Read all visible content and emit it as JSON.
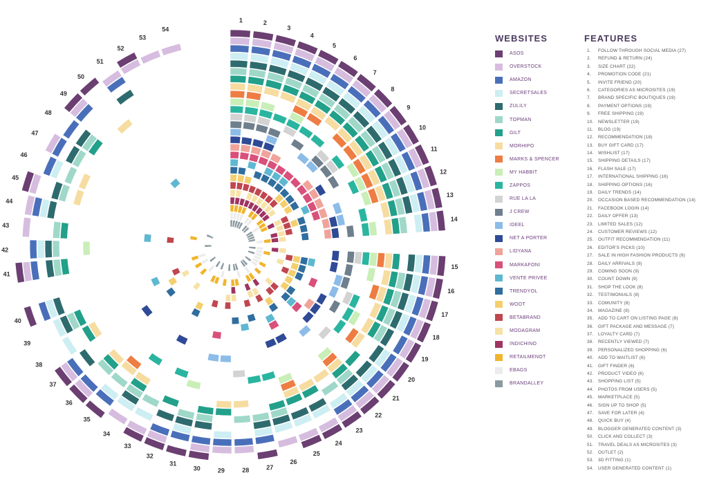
{
  "legend": {
    "websites_title": "WEBSITES",
    "features_title": "FEATURES"
  },
  "websites": [
    {
      "name": "ASOS",
      "color": "#6b3f72"
    },
    {
      "name": "OVERSTOCK",
      "color": "#d6bddf"
    },
    {
      "name": "AMAZON",
      "color": "#4a6fba"
    },
    {
      "name": "SECRETSALES",
      "color": "#cdeef2"
    },
    {
      "name": "ZULILY",
      "color": "#2e6b6e"
    },
    {
      "name": "TOPMAN",
      "color": "#9fd8c9"
    },
    {
      "name": "GILT",
      "color": "#22a08a"
    },
    {
      "name": "MORHIPO",
      "color": "#f6dca0"
    },
    {
      "name": "MARKS & SPENCER",
      "color": "#ee7d43"
    },
    {
      "name": "MY HABBIT",
      "color": "#c9eeb7"
    },
    {
      "name": "ZAPPOS",
      "color": "#2ab5a0"
    },
    {
      "name": "RUE LA LA",
      "color": "#d3d3d3"
    },
    {
      "name": "J CREW",
      "color": "#6f7f8d"
    },
    {
      "name": "IDEEL",
      "color": "#8cbce8"
    },
    {
      "name": "NET A PORTER",
      "color": "#2f4a96"
    },
    {
      "name": "LIDYANA",
      "color": "#f0a39a"
    },
    {
      "name": "MARKAFONI",
      "color": "#d9507a"
    },
    {
      "name": "VENTE PRIVEE",
      "color": "#5fb8d1"
    },
    {
      "name": "TRENDYOL",
      "color": "#2f6e9e"
    },
    {
      "name": "WOOT",
      "color": "#f3cf6e"
    },
    {
      "name": "BETABRAND",
      "color": "#c0464f"
    },
    {
      "name": "MODAGRAM",
      "color": "#f7e2a6"
    },
    {
      "name": "INDICHINO",
      "color": "#9e3462"
    },
    {
      "name": "RETAILMENOT",
      "color": "#f0b52c"
    },
    {
      "name": "EBAGS",
      "color": "#ececec"
    },
    {
      "name": "BRANDALLEY",
      "color": "#8a9aa0"
    }
  ],
  "features": [
    {
      "no": "1.",
      "label": "FOLLOW THROUGH SOCIAL MEDIA (27)"
    },
    {
      "no": "2.",
      "label": "REFUND & RETURN (24)"
    },
    {
      "no": "3.",
      "label": "SIZE CHART (22)"
    },
    {
      "no": "4.",
      "label": "PROMOTION CODE (21)"
    },
    {
      "no": "5.",
      "label": "INVITE FRIEND (20)"
    },
    {
      "no": "6.",
      "label": "CATEGORIES AS MICROSITES (19)"
    },
    {
      "no": "7.",
      "label": "BRAND SPECIFIC BOUTIQUES (19)"
    },
    {
      "no": "8.",
      "label": "PAYMENT OPTIONS (19)"
    },
    {
      "no": "9.",
      "label": "FREE SHIPPING (19)"
    },
    {
      "no": "10.",
      "label": "NEWSLETTER (19)"
    },
    {
      "no": "11.",
      "label": "BLOG (19)"
    },
    {
      "no": "12.",
      "label": "RECOMMENDATION (18)"
    },
    {
      "no": "13.",
      "label": "BUY GIFT CARD (17)"
    },
    {
      "no": "14.",
      "label": "WISHLIST (17)"
    },
    {
      "no": "15.",
      "label": "SHIPPING DETAILS (17)"
    },
    {
      "no": "16.",
      "label": "FLASH SALE (17)"
    },
    {
      "no": "17.",
      "label": "INTERNATIONAL SHIPPING (16)"
    },
    {
      "no": "18.",
      "label": "SHIPPING OPTIONS (16)"
    },
    {
      "no": "19.",
      "label": "DAILY TRENDS (14)"
    },
    {
      "no": "20.",
      "label": "OCCASION BASED RECOMMENDATION (14)"
    },
    {
      "no": "21.",
      "label": "FACEBOOK LOGIN (14)"
    },
    {
      "no": "22.",
      "label": "DAILY OFFER (13)"
    },
    {
      "no": "23.",
      "label": "LIMITED SALES (12)"
    },
    {
      "no": "24.",
      "label": "CUSTOMER REVIEWS (12)"
    },
    {
      "no": "25.",
      "label": "OUTFIT RECOMMENDATION (11)"
    },
    {
      "no": "26.",
      "label": "EDITOR'S PICKS (10)"
    },
    {
      "no": "27.",
      "label": "SALE IN HIGH FASHION PRODUCTS  (9)"
    },
    {
      "no": "28.",
      "label": "DAILY ARRIVALS (9)"
    },
    {
      "no": "29.",
      "label": "COMING SOON (9)"
    },
    {
      "no": "30.",
      "label": "COUNT DOWN (9)"
    },
    {
      "no": "31.",
      "label": "SHOP THE LOOK (8)"
    },
    {
      "no": "32.",
      "label": "TESTIMONIALS (8)"
    },
    {
      "no": "33.",
      "label": "COMUNITY (8)"
    },
    {
      "no": "34.",
      "label": "MAGAZINE (8)"
    },
    {
      "no": "35.",
      "label": "ADD TO CART ON LISTING PAGE (8)"
    },
    {
      "no": "36.",
      "label": "GIFT PACKAGE AND MESSAGE (7)"
    },
    {
      "no": "37.",
      "label": "LOYALTY CARD (7)"
    },
    {
      "no": "38.",
      "label": "RECENTLY VIEWED (7)"
    },
    {
      "no": "39.",
      "label": "PERSONALIZED SHOPPING (6)"
    },
    {
      "no": "40.",
      "label": "ADD TO WAITLIST (6)"
    },
    {
      "no": "41.",
      "label": "GIFT FINDER (6)"
    },
    {
      "no": "42.",
      "label": "PRODUCT VIDEO (6)"
    },
    {
      "no": "43.",
      "label": "SHOPPING LIST (5)"
    },
    {
      "no": "44.",
      "label": "PHOTOS FROM USERS (5)"
    },
    {
      "no": "45.",
      "label": "MARKETPLACE (5)"
    },
    {
      "no": "46.",
      "label": "SIGN UP TO SHOP (5)"
    },
    {
      "no": "47.",
      "label": "SAVE FOR LATER (4)"
    },
    {
      "no": "48.",
      "label": "QUICK BUY (4)"
    },
    {
      "no": "49.",
      "label": "BLOGGER GENERATED CONTENT (3)"
    },
    {
      "no": "50.",
      "label": "CLICK AND COLLECT (3)"
    },
    {
      "no": "51.",
      "label": "TRAVEL DEALS AS MICROSITES (3)"
    },
    {
      "no": "52.",
      "label": "OUTLET (2)"
    },
    {
      "no": "53.",
      "label": "3D FITTING (1)"
    },
    {
      "no": "54.",
      "label": "USER GENERATED CONTENT (1)"
    }
  ],
  "chart_data": {
    "type": "radial-bar",
    "title": "",
    "series_legend_title": "WEBSITES",
    "category_legend_title": "FEATURES",
    "categories": [
      "1",
      "2",
      "3",
      "4",
      "5",
      "6",
      "7",
      "8",
      "9",
      "10",
      "11",
      "12",
      "13",
      "14",
      "15",
      "16",
      "17",
      "18",
      "19",
      "20",
      "21",
      "22",
      "23",
      "24",
      "25",
      "26",
      "27",
      "28",
      "29",
      "30",
      "31",
      "32",
      "33",
      "34",
      "35",
      "36",
      "37",
      "38",
      "39",
      "40",
      "41",
      "42",
      "43",
      "44",
      "45",
      "46",
      "47",
      "48",
      "49",
      "50",
      "51",
      "52",
      "53",
      "54"
    ],
    "counts": [
      27,
      24,
      22,
      21,
      20,
      19,
      19,
      19,
      19,
      19,
      19,
      18,
      17,
      17,
      17,
      17,
      16,
      16,
      14,
      14,
      14,
      13,
      12,
      12,
      11,
      10,
      9,
      9,
      9,
      9,
      8,
      8,
      8,
      8,
      8,
      7,
      7,
      7,
      6,
      6,
      6,
      6,
      5,
      5,
      5,
      5,
      4,
      4,
      3,
      3,
      3,
      2,
      1,
      1
    ],
    "max_count": 27,
    "description_of_encoding": "Each spoke is one feature; stacked segments from the outer ring inward are the websites offering that feature, colored by website."
  }
}
